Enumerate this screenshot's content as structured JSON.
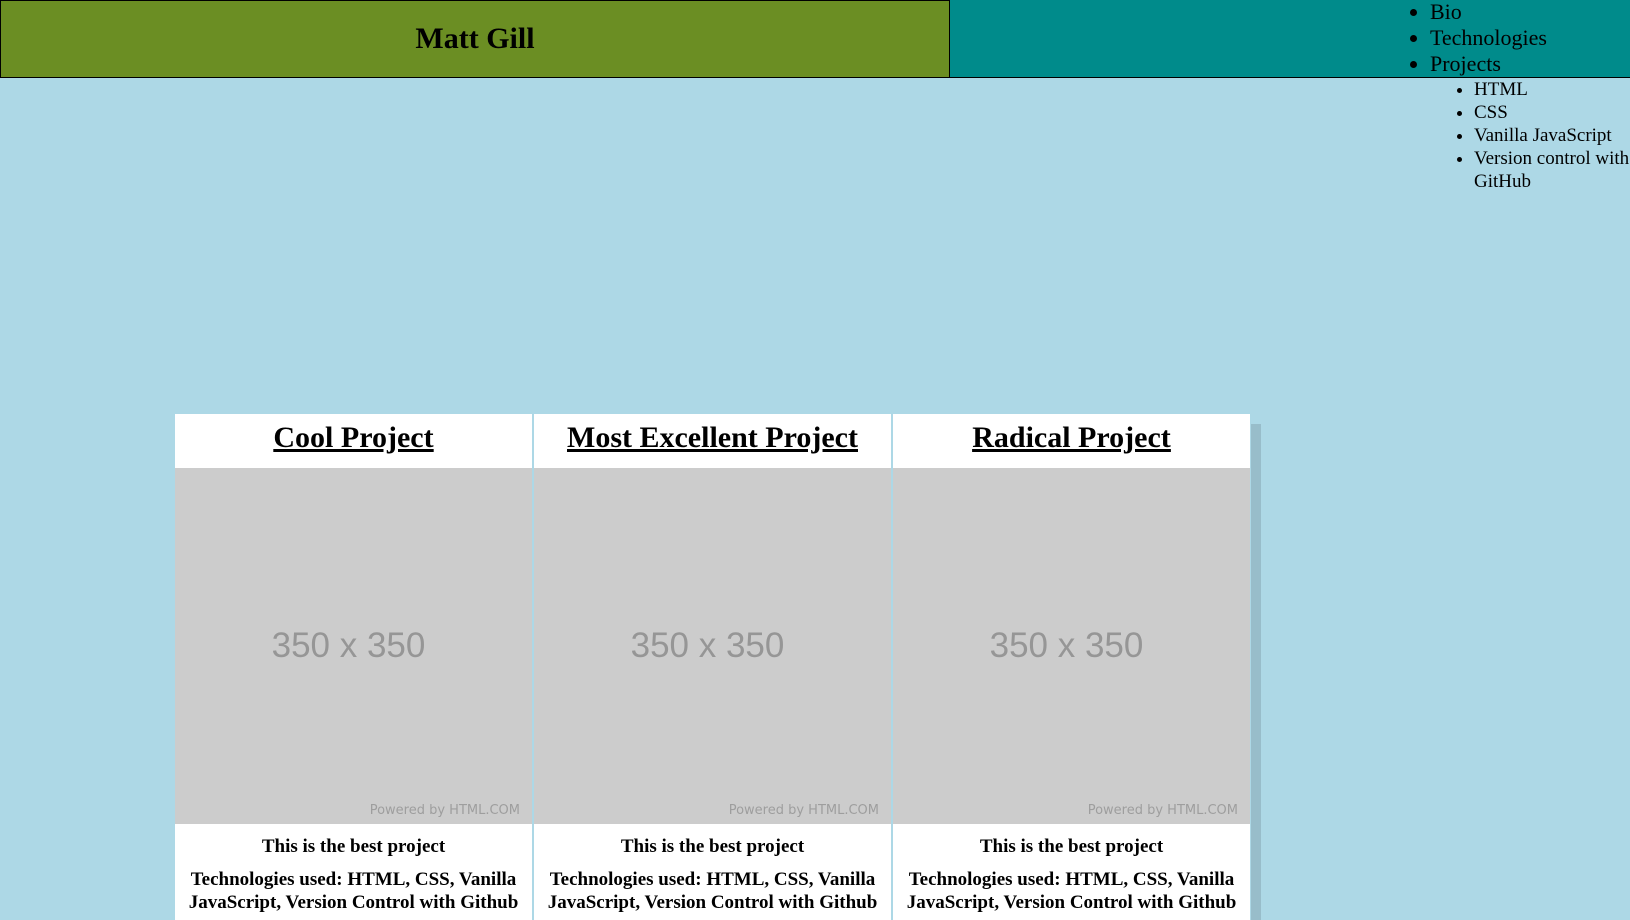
{
  "header": {
    "title": "Matt Gill",
    "nav": {
      "bio": "Bio",
      "technologies": "Technologies",
      "projects": "Projects",
      "sub": {
        "html": "HTML",
        "css": "CSS",
        "js": "Vanilla JavaScript",
        "git": "Version control with GitHub"
      }
    }
  },
  "colors": {
    "page_background": "#add8e6",
    "brand_background": "#6b8e23",
    "nav_background": "#008b8b",
    "placeholder_background": "#cccccc"
  },
  "projects": [
    {
      "title": "Cool Project",
      "image_label": "350 x 350",
      "image_credit": "Powered by HTML.COM",
      "description": "This is the best project",
      "technologies": "Technologies used: HTML, CSS, Vanilla JavaScript, Version Control with Github"
    },
    {
      "title": "Most Excellent Project",
      "image_label": "350 x 350",
      "image_credit": "Powered by HTML.COM",
      "description": "This is the best project",
      "technologies": "Technologies used: HTML, CSS, Vanilla JavaScript, Version Control with Github"
    },
    {
      "title": "Radical Project",
      "image_label": "350 x 350",
      "image_credit": "Powered by HTML.COM",
      "description": "This is the best project",
      "technologies": "Technologies used: HTML, CSS, Vanilla JavaScript, Version Control with Github"
    }
  ]
}
